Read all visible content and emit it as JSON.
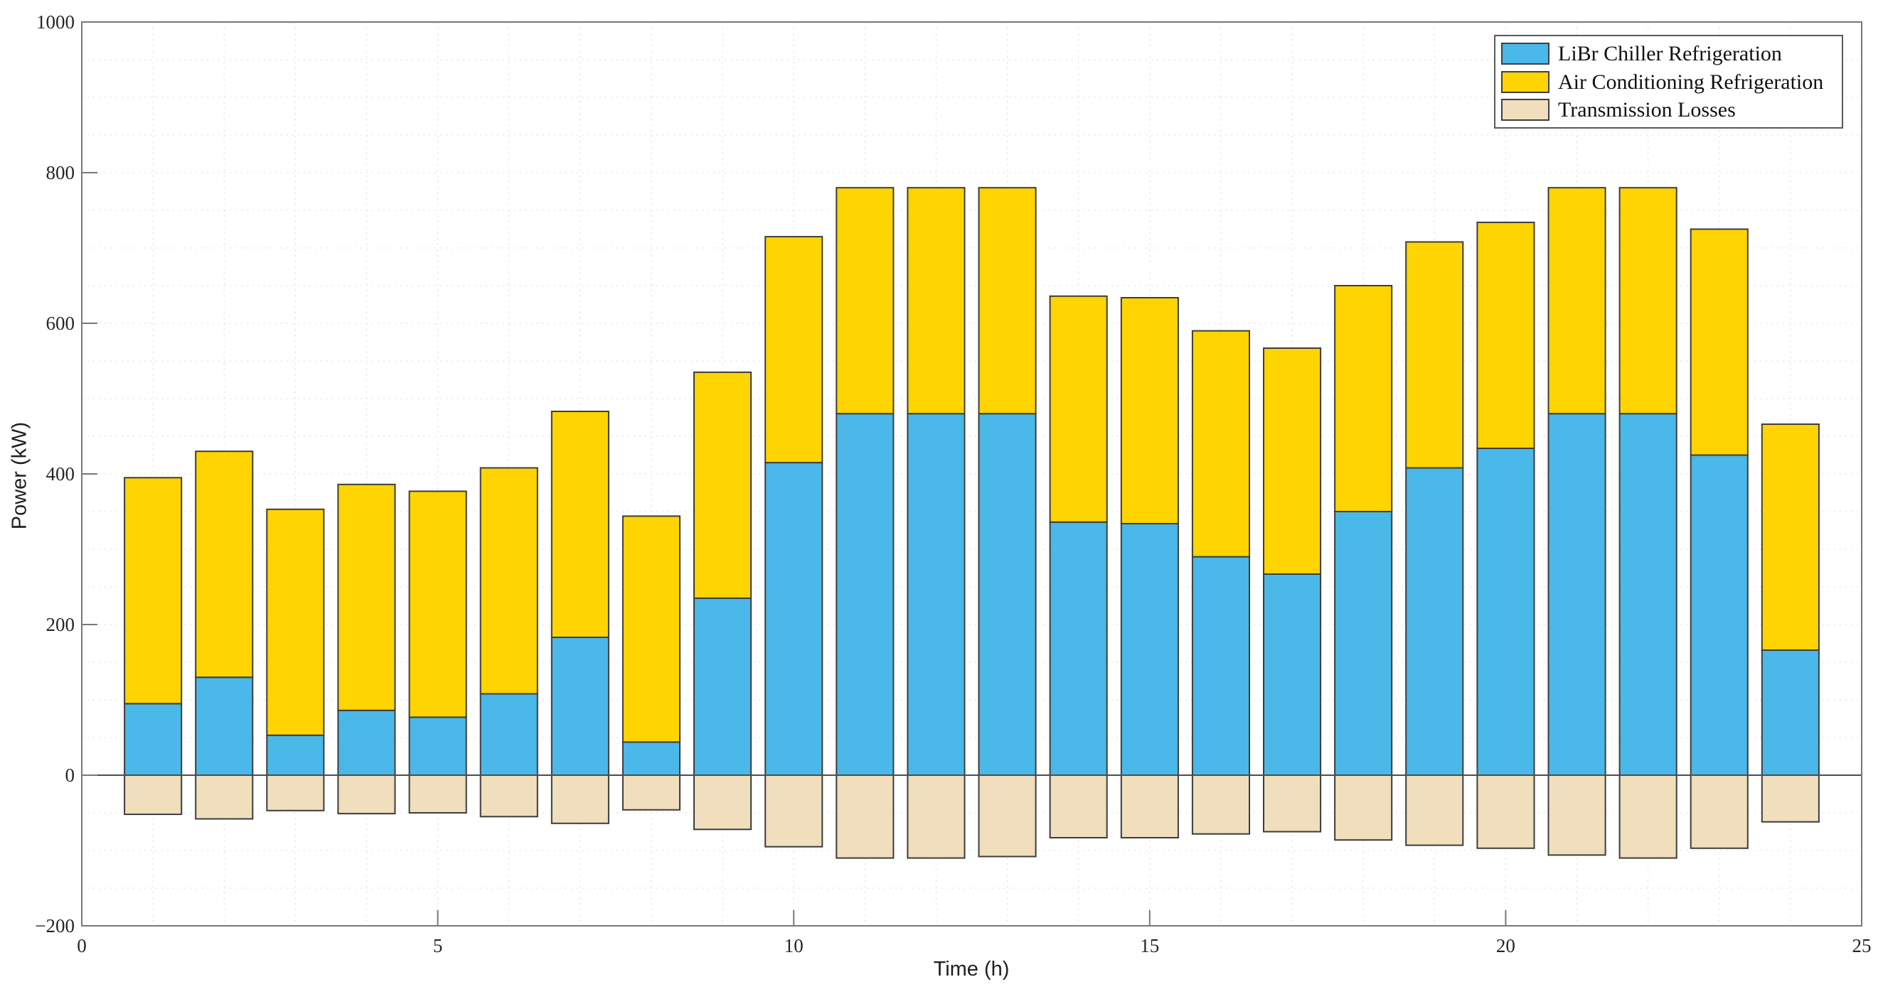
{
  "chart_data": {
    "type": "bar",
    "stacked": true,
    "xlabel": "Time (h)",
    "ylabel": "Power (kW)",
    "x": [
      1,
      2,
      3,
      4,
      5,
      6,
      7,
      8,
      9,
      10,
      11,
      12,
      13,
      14,
      15,
      16,
      17,
      18,
      19,
      20,
      21,
      22,
      23,
      24
    ],
    "series": [
      {
        "name": "LiBr Chiller Refrigeration",
        "color": "#4ab8e8",
        "values": [
          95,
          130,
          53,
          86,
          77,
          108,
          183,
          44,
          235,
          415,
          480,
          480,
          480,
          336,
          334,
          290,
          267,
          350,
          408,
          434,
          480,
          480,
          425,
          166
        ]
      },
      {
        "name": "Air Conditioning Refrigeration",
        "color": "#ffd400",
        "values": [
          300,
          300,
          300,
          300,
          300,
          300,
          300,
          300,
          300,
          300,
          300,
          300,
          300,
          300,
          300,
          300,
          300,
          300,
          300,
          300,
          300,
          300,
          300,
          300
        ]
      },
      {
        "name": "Transmission Losses",
        "color": "#f0debc",
        "values": [
          -52,
          -58,
          -47,
          -51,
          -50,
          -55,
          -64,
          -46,
          -72,
          -95,
          -110,
          -110,
          -108,
          -83,
          -83,
          -78,
          -75,
          -86,
          -93,
          -97,
          -106,
          -110,
          -97,
          -62
        ]
      }
    ],
    "bar_edge_color": "#3d3d3d",
    "xlim": [
      0,
      25
    ],
    "ylim": [
      -200,
      1000
    ],
    "xticks": [
      0,
      5,
      10,
      15,
      20,
      25
    ],
    "xtick_labels": [
      "0",
      "5",
      "10",
      "15",
      "20",
      "25"
    ],
    "yticks": [
      -200,
      0,
      200,
      400,
      600,
      800,
      1000
    ],
    "ytick_labels": [
      "−200",
      "0",
      "200",
      "400",
      "600",
      "800",
      "1000"
    ],
    "bar_width": 0.8,
    "grid": {
      "h_step": 50,
      "v_step": 1,
      "style": "dotted"
    },
    "zero_line": true,
    "legend_position": "top-right"
  }
}
